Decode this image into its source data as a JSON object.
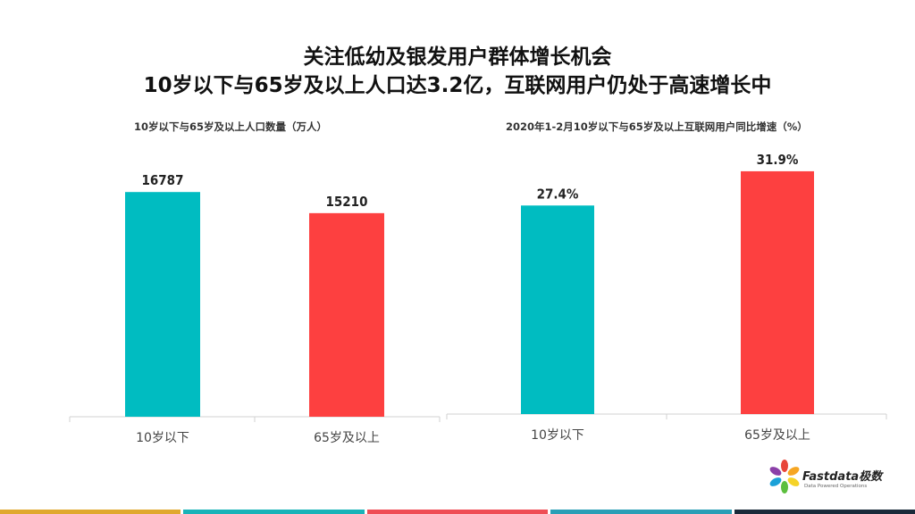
{
  "title_line1": "关注低幼及银发用户群体增长机会",
  "title_line2": "10岁以下与65岁及以上人口达3.2亿，互联网用户仍处于高速增长中",
  "chart_data": [
    {
      "type": "bar",
      "title": "10岁以下与65岁及以上人口数量（万人）",
      "categories": [
        "10岁以下",
        "65岁及以上"
      ],
      "values": [
        16787,
        15210
      ],
      "value_labels": [
        "16787",
        "15210"
      ],
      "colors": [
        "#00bcc1",
        "#fd4040"
      ],
      "ylim": [
        0,
        20000
      ]
    },
    {
      "type": "bar",
      "title": "2020年1-2月10岁以下与65岁及以上互联网用户同比增速（%）",
      "categories": [
        "10岁以下",
        "65岁及以上"
      ],
      "values": [
        27.4,
        31.9
      ],
      "value_labels": [
        "27.4%",
        "31.9%"
      ],
      "colors": [
        "#00bcc1",
        "#fd4040"
      ],
      "ylim": [
        0,
        34
      ]
    }
  ],
  "logo": {
    "brand": "Fastdata极数",
    "tagline": "Data Powered Operations"
  },
  "footer_colors": [
    "#e0a82e",
    "#19b3b8",
    "#ef4d55",
    "#2a9fb6",
    "#1a2a3a"
  ]
}
